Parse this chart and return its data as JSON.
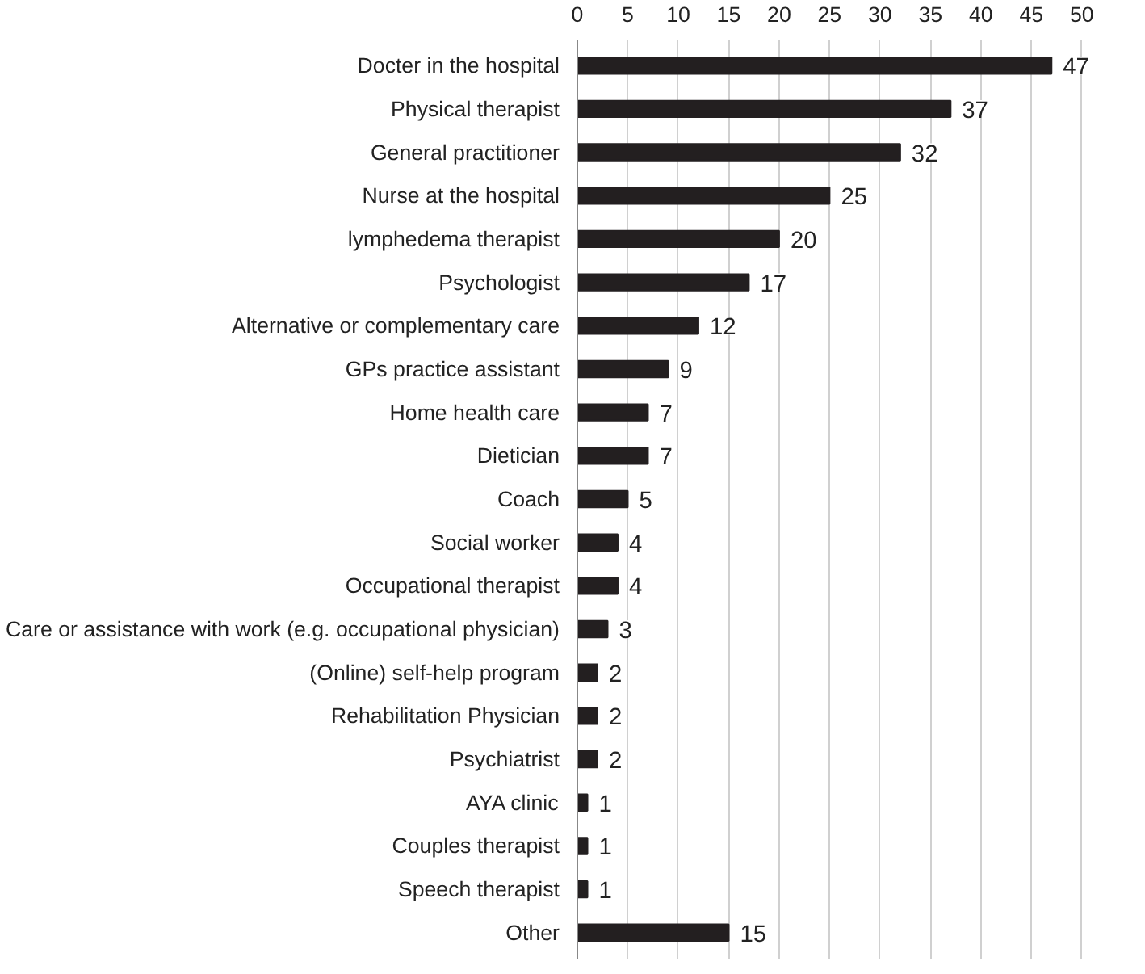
{
  "chart_data": {
    "type": "bar",
    "orientation": "horizontal",
    "categories": [
      "Docter in the hospital",
      "Physical therapist",
      "General practitioner",
      "Nurse at the hospital",
      "lymphedema therapist",
      "Psychologist",
      "Alternative or complementary care",
      "GPs practice assistant",
      "Home health care",
      "Dietician",
      "Coach",
      "Social worker",
      "Occupational therapist",
      "Care or assistance with work (e.g. occupational physician)",
      "(Online) self-help program",
      "Rehabilitation Physician",
      "Psychiatrist",
      "AYA clinic",
      "Couples therapist",
      "Speech therapist",
      "Other"
    ],
    "values": [
      47,
      37,
      32,
      25,
      20,
      17,
      12,
      9,
      7,
      7,
      5,
      4,
      4,
      3,
      2,
      2,
      2,
      1,
      1,
      1,
      15
    ],
    "color": "#231f20",
    "xlim": [
      0,
      50
    ],
    "xticks": [
      0,
      5,
      10,
      15,
      20,
      25,
      30,
      35,
      40,
      45,
      50
    ],
    "grid": "x",
    "data_labels": true
  }
}
